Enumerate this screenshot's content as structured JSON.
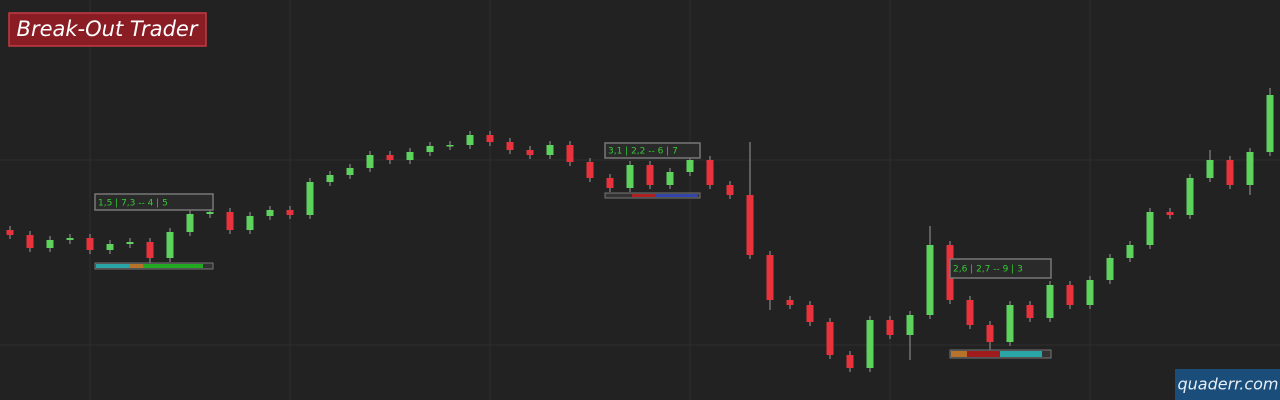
{
  "chart_data": {
    "type": "candlestick",
    "title": "Break-Out Trader",
    "watermark": "quaderr.com",
    "ylim": [
      0,
      400
    ],
    "up_color": "#5dd35d",
    "down_color": "#e8333d",
    "open": [
      170,
      165,
      152,
      160,
      162,
      150,
      156,
      158,
      142,
      168,
      186,
      188,
      170,
      184,
      190,
      185,
      218,
      225,
      232,
      245,
      240,
      248,
      254,
      255,
      265,
      258,
      250,
      245,
      255,
      238,
      222,
      212,
      235,
      215,
      228,
      240,
      215,
      205,
      145,
      100,
      95,
      78,
      45,
      32,
      80,
      65,
      85,
      155,
      100,
      75,
      58,
      95,
      82,
      115,
      95,
      120,
      142,
      155,
      188,
      185,
      222,
      240,
      215,
      248
    ],
    "high": [
      174,
      169,
      164,
      166,
      166,
      160,
      162,
      162,
      172,
      190,
      192,
      192,
      188,
      194,
      194,
      222,
      229,
      236,
      249,
      249,
      252,
      258,
      259,
      269,
      269,
      262,
      254,
      259,
      259,
      242,
      226,
      239,
      239,
      232,
      244,
      244,
      219,
      258,
      149,
      104,
      99,
      82,
      49,
      84,
      84,
      89,
      174,
      159,
      104,
      79,
      99,
      99,
      119,
      119,
      124,
      146,
      159,
      192,
      192,
      226,
      250,
      244,
      252,
      312
    ],
    "low": [
      161,
      148,
      148,
      156,
      146,
      146,
      152,
      132,
      138,
      164,
      182,
      166,
      166,
      180,
      181,
      181,
      214,
      221,
      228,
      236,
      236,
      244,
      250,
      251,
      254,
      246,
      241,
      241,
      234,
      218,
      208,
      208,
      211,
      211,
      224,
      211,
      201,
      141,
      90,
      91,
      74,
      41,
      28,
      28,
      61,
      40,
      81,
      96,
      71,
      50,
      54,
      78,
      78,
      91,
      91,
      116,
      138,
      151,
      181,
      181,
      218,
      211,
      205,
      244
    ],
    "close": [
      165,
      152,
      160,
      162,
      150,
      156,
      158,
      142,
      168,
      186,
      188,
      170,
      184,
      190,
      185,
      218,
      225,
      232,
      245,
      240,
      248,
      254,
      255,
      265,
      258,
      250,
      245,
      255,
      238,
      222,
      212,
      235,
      215,
      228,
      240,
      215,
      205,
      145,
      100,
      95,
      78,
      45,
      32,
      80,
      65,
      85,
      155,
      100,
      75,
      58,
      95,
      82,
      115,
      95,
      120,
      142,
      155,
      188,
      185,
      222,
      240,
      215,
      248,
      305
    ],
    "annotations": [
      {
        "text": "1,5 | 7,3 -- 4 | 5"
      },
      {
        "text": "3,1 | 2,2 -- 6 | 7"
      },
      {
        "text": "2,6 | 2,7 -- 9 | 3"
      }
    ]
  }
}
